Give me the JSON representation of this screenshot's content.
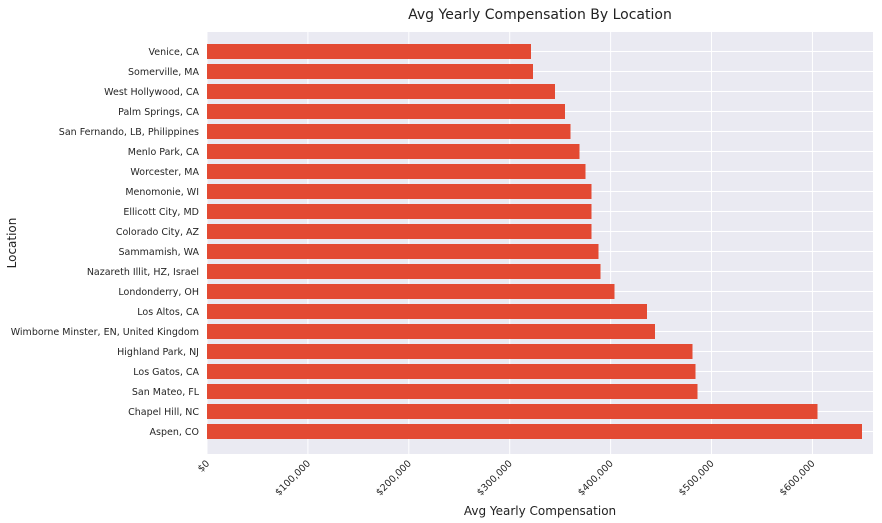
{
  "chart_data": {
    "type": "bar",
    "orientation": "horizontal",
    "title": "Avg Yearly Compensation By Location",
    "xlabel": "Avg Yearly Compensation",
    "ylabel": "Location",
    "categories": [
      "Aspen, CO",
      "Chapel Hill, NC",
      "San Mateo, FL",
      "Los Gatos, CA",
      "Highland Park, NJ",
      "Wimborne Minster, EN, United Kingdom",
      "Los Altos, CA",
      "Londonderry, OH",
      "Nazareth Illit, HZ, Israel",
      "Sammamish, WA",
      "Colorado City, AZ",
      "Ellicott City, MD",
      "Menomonie, WI",
      "Worcester, MA",
      "Menlo Park, CA",
      "San Fernando, LB, Philippines",
      "Palm Springs, CA",
      "West Hollywood, CA",
      "Somerville, MA",
      "Venice, CA"
    ],
    "values": [
      649000,
      605000,
      486000,
      484000,
      481000,
      444000,
      436000,
      404000,
      390000,
      388000,
      381000,
      381000,
      381000,
      375000,
      369000,
      360000,
      355000,
      345000,
      323000,
      321000
    ],
    "xlim": [
      0,
      660000
    ],
    "xticks": [
      0,
      100000,
      200000,
      300000,
      400000,
      500000,
      600000
    ],
    "xtick_labels": [
      "$0",
      "$100,000",
      "$200,000",
      "$300,000",
      "$400,000",
      "$500,000",
      "$600,000"
    ],
    "grid": true,
    "bar_color": "#e34a33",
    "background_color": "#eaeaf2",
    "gridline_color": "#ffffff"
  }
}
